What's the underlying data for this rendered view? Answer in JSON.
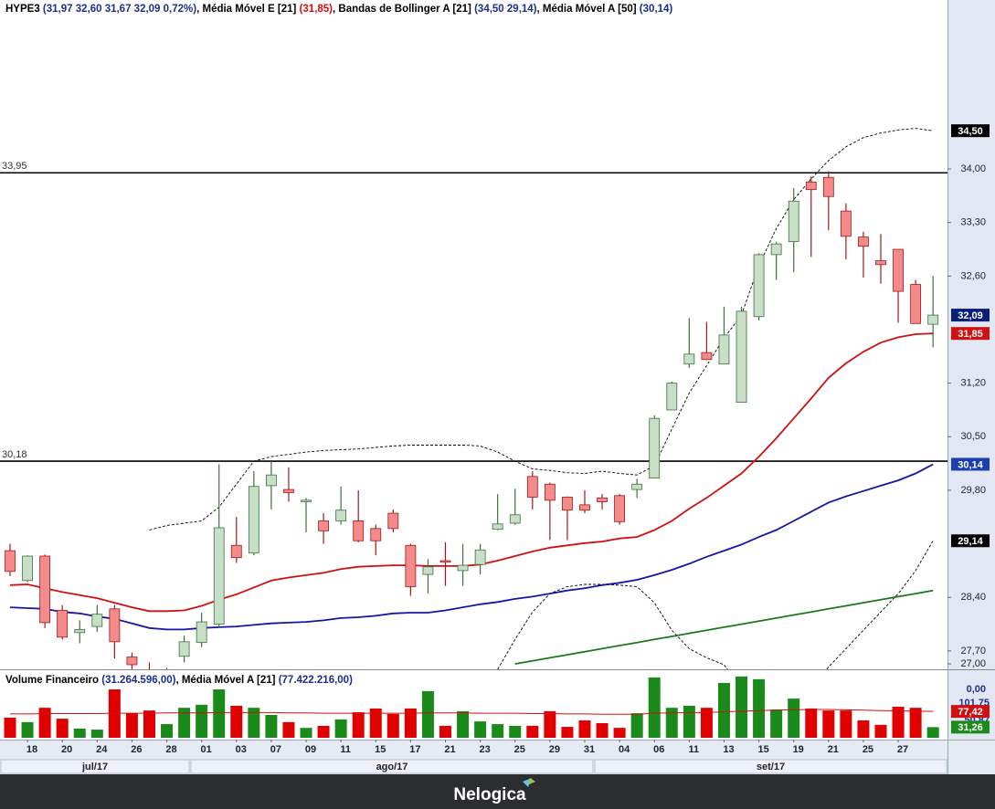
{
  "chart_data": [
    {
      "type": "candlestick",
      "name": "HYPE3",
      "ohlc_label": "(31,97  32,60  31,67  32,09  0,72%)",
      "categories": [
        null,
        "18",
        null,
        "20",
        null,
        "24",
        null,
        "26",
        null,
        "28",
        null,
        "01",
        null,
        "03",
        null,
        "07",
        null,
        "09",
        null,
        "11",
        null,
        "15",
        null,
        "17",
        null,
        "21",
        null,
        "23",
        null,
        "25",
        null,
        "29",
        null,
        "31",
        null,
        "04",
        null,
        "06",
        null,
        "11",
        null,
        "13",
        null,
        "15",
        null,
        "19",
        null,
        "21",
        null,
        "25",
        null,
        "27",
        null,
        null
      ],
      "months": [
        "jul/17",
        "ago/17",
        "set/17"
      ],
      "open": [
        29.01,
        28.62,
        28.94,
        28.23,
        27.94,
        28.02,
        28.25,
        27.62,
        27.45,
        27.2,
        27.63,
        27.81,
        28.05,
        29.08,
        28.98,
        29.86,
        29.81,
        29.65,
        29.4,
        29.4,
        29.4,
        29.3,
        29.5,
        29.08,
        28.7,
        28.88,
        28.75,
        28.83,
        29.29,
        29.37,
        29.98,
        29.88,
        29.71,
        29.61,
        29.7,
        29.73,
        29.81,
        29.96,
        30.85,
        31.45,
        31.6,
        31.45,
        30.95,
        32.07,
        32.88,
        33.05,
        33.83,
        33.89,
        33.45,
        33.11,
        32.8,
        32.95,
        32.49,
        31.97
      ],
      "high": [
        29.1,
        28.95,
        28.96,
        28.3,
        28.1,
        28.3,
        28.3,
        27.68,
        27.55,
        27.48,
        27.9,
        28.2,
        30.14,
        29.45,
        30.05,
        30.18,
        30.1,
        29.7,
        29.5,
        29.85,
        29.8,
        29.35,
        29.55,
        29.1,
        28.9,
        29.12,
        29.1,
        29.1,
        29.75,
        29.82,
        30.05,
        29.9,
        29.72,
        29.8,
        29.75,
        29.75,
        29.95,
        30.78,
        31.22,
        32.05,
        32.0,
        32.2,
        32.2,
        32.9,
        33.05,
        33.75,
        33.9,
        33.97,
        33.55,
        33.18,
        33.15,
        32.95,
        32.55,
        32.6
      ],
      "low": [
        28.68,
        28.6,
        28.0,
        27.85,
        27.8,
        27.95,
        27.6,
        27.46,
        27.1,
        27.1,
        27.55,
        27.75,
        28.0,
        28.85,
        28.95,
        29.55,
        29.65,
        29.25,
        29.1,
        29.35,
        29.12,
        28.95,
        29.25,
        28.42,
        28.45,
        28.55,
        28.55,
        28.7,
        29.28,
        29.35,
        29.55,
        29.15,
        29.15,
        29.5,
        29.55,
        29.35,
        29.7,
        29.96,
        30.85,
        31.4,
        31.5,
        31.45,
        30.95,
        32.02,
        32.55,
        32.65,
        32.85,
        33.2,
        32.82,
        32.58,
        32.5,
        31.99,
        31.98,
        31.67
      ],
      "close": [
        28.74,
        28.94,
        28.07,
        27.88,
        27.98,
        28.18,
        27.82,
        27.52,
        27.2,
        27.4,
        27.82,
        28.08,
        29.31,
        28.92,
        29.85,
        30.0,
        29.77,
        29.67,
        29.27,
        29.54,
        29.14,
        29.14,
        29.3,
        28.54,
        28.8,
        28.86,
        28.82,
        29.02,
        29.36,
        29.48,
        29.71,
        29.67,
        29.54,
        29.54,
        29.65,
        29.39,
        29.88,
        30.74,
        31.2,
        31.58,
        31.51,
        31.83,
        32.14,
        32.88,
        33.02,
        33.58,
        33.73,
        33.64,
        33.12,
        32.99,
        32.75,
        32.4,
        31.98,
        32.09
      ],
      "up_color": "#c6dfc6",
      "up_edge": "#3f6f3f",
      "down_color": "#f48a8a",
      "down_edge": "#a01818",
      "series": [
        {
          "name": "Média Móvel E [21]",
          "value_label": "(31,85)",
          "label_color": "#d01010",
          "color": "#d01010",
          "dashed": false,
          "values": [
            28.56,
            28.57,
            28.52,
            28.47,
            28.43,
            28.39,
            28.33,
            28.27,
            28.22,
            28.22,
            28.23,
            28.29,
            28.37,
            28.44,
            28.53,
            28.62,
            28.66,
            28.69,
            28.72,
            28.77,
            28.8,
            28.81,
            28.82,
            28.82,
            28.81,
            28.81,
            28.81,
            28.83,
            28.88,
            28.94,
            29.0,
            29.05,
            29.08,
            29.11,
            29.13,
            29.17,
            29.19,
            29.28,
            29.4,
            29.56,
            29.7,
            29.86,
            30.02,
            30.24,
            30.48,
            30.74,
            31.0,
            31.27,
            31.46,
            31.61,
            31.73,
            31.8,
            31.84,
            31.85
          ]
        },
        {
          "name": "Bandas de Bollinger A [21]",
          "value_label": "(34,50  29,14)",
          "label_color": "#1c2f8c",
          "color": "#000000",
          "dashed": true,
          "values": [
            null,
            null,
            null,
            null,
            null,
            null,
            null,
            null,
            29.28,
            29.34,
            29.37,
            29.4,
            29.58,
            29.88,
            30.18,
            30.24,
            30.27,
            30.3,
            30.32,
            30.33,
            30.34,
            30.36,
            30.38,
            30.39,
            30.39,
            30.39,
            30.39,
            30.38,
            30.3,
            30.18,
            30.08,
            30.06,
            30.03,
            30.02,
            30.05,
            30.02,
            30.0,
            30.12,
            30.6,
            31.07,
            31.43,
            31.79,
            32.09,
            32.74,
            33.22,
            33.6,
            33.87,
            34.11,
            34.29,
            34.41,
            34.47,
            34.51,
            34.53,
            34.5
          ],
          "lower": [
            null,
            null,
            null,
            null,
            null,
            null,
            null,
            null,
            null,
            null,
            null,
            null,
            null,
            null,
            null,
            null,
            null,
            null,
            null,
            null,
            null,
            null,
            null,
            null,
            null,
            null,
            null,
            null,
            27.46,
            27.85,
            28.21,
            28.45,
            28.54,
            28.57,
            28.57,
            28.56,
            28.54,
            28.33,
            27.97,
            27.73,
            27.61,
            27.52,
            27.2,
            26.9,
            26.8,
            26.9,
            27.2,
            27.49,
            27.73,
            27.97,
            28.21,
            28.45,
            28.75,
            29.14
          ]
        },
        {
          "name": "Média Móvel A [50]",
          "value_label": "(30,14)",
          "label_color": "#1c2f8c",
          "color": "#1515a8",
          "dashed": false,
          "values": [
            28.27,
            28.26,
            28.25,
            28.21,
            28.19,
            28.15,
            28.12,
            28.06,
            28.0,
            27.98,
            27.98,
            28.0,
            28.01,
            28.02,
            28.04,
            28.06,
            28.07,
            28.08,
            28.1,
            28.13,
            28.14,
            28.16,
            28.19,
            28.2,
            28.2,
            28.23,
            28.27,
            28.31,
            28.34,
            28.38,
            28.41,
            28.45,
            28.49,
            28.52,
            28.56,
            28.59,
            28.63,
            28.69,
            28.76,
            28.84,
            28.93,
            29.01,
            29.09,
            29.19,
            29.28,
            29.4,
            29.52,
            29.64,
            29.72,
            29.79,
            29.86,
            29.93,
            30.02,
            30.14
          ]
        },
        {
          "color": "#1a7a1a",
          "dashed": false,
          "values": [
            null,
            null,
            null,
            null,
            null,
            null,
            null,
            null,
            null,
            null,
            null,
            null,
            null,
            null,
            null,
            null,
            null,
            null,
            null,
            null,
            null,
            null,
            null,
            null,
            null,
            null,
            null,
            null,
            null,
            27.53,
            27.57,
            27.61,
            27.65,
            27.69,
            27.73,
            27.77,
            27.81,
            27.85,
            27.89,
            27.93,
            27.97,
            28.01,
            28.05,
            28.09,
            28.13,
            28.17,
            28.21,
            28.25,
            28.29,
            28.33,
            28.37,
            28.41,
            28.45,
            28.49
          ]
        }
      ],
      "hlines": [
        {
          "value": 33.95,
          "label": "33,95"
        },
        {
          "value": 30.18,
          "label": "30,18"
        }
      ],
      "ylim": [
        27.46,
        35.97
      ],
      "yticks": [
        {
          "value": 34.0,
          "label": "34,00"
        },
        {
          "value": 33.3,
          "label": "33,30"
        },
        {
          "value": 32.6,
          "label": "32,60"
        },
        {
          "value": 31.2,
          "label": "31,20"
        },
        {
          "value": 30.5,
          "label": "30,50"
        },
        {
          "value": 29.8,
          "label": "29,80"
        },
        {
          "value": 28.4,
          "label": "28,40"
        },
        {
          "value": 27.7,
          "label": "27,70"
        },
        {
          "value": 27.0,
          "label": "27,00"
        }
      ],
      "badges": [
        {
          "value": 34.5,
          "label": "34,50",
          "color": "#000000"
        },
        {
          "value": 32.09,
          "label": "32,09",
          "color": "#0a1f7a"
        },
        {
          "value": 31.85,
          "label": "31,85",
          "color": "#d01010"
        },
        {
          "value": 30.14,
          "label": "30,14",
          "color": "#1a3fb0"
        },
        {
          "value": 29.14,
          "label": "29,14",
          "color": "#000000"
        }
      ]
    },
    {
      "type": "bar",
      "name": "Volume Financeiro",
      "value_label": "(31.264.596,00)",
      "values": [
        59,
        46,
        88,
        56,
        27,
        24,
        142,
        72,
        80,
        40,
        88,
        97,
        142,
        94,
        88,
        67,
        46,
        29,
        35,
        54,
        75,
        86,
        70,
        86,
        137,
        35,
        78,
        48,
        40,
        35,
        35,
        78,
        32,
        51,
        43,
        29,
        72,
        177,
        88,
        94,
        88,
        161,
        180,
        172,
        83,
        115,
        86,
        80,
        80,
        51,
        38,
        91,
        88,
        31.26
      ],
      "up_color": "#1a8a1a",
      "down_color": "#e00000",
      "series": [
        {
          "name": "Média Móvel A [21]",
          "value_label": "(77.422.216,00)",
          "color": "#d01010",
          "values": [
            70,
            70,
            71,
            71,
            71,
            71,
            72,
            72,
            72,
            73,
            73,
            73,
            74,
            74,
            74,
            74,
            73,
            73,
            72,
            72,
            72,
            72,
            72,
            72,
            73,
            73,
            73,
            72,
            72,
            72,
            71,
            71,
            70,
            70,
            69,
            69,
            69,
            72,
            73,
            74,
            74,
            76,
            78,
            80,
            81,
            82,
            83,
            83,
            82,
            81,
            80,
            79,
            78,
            77.42
          ]
        }
      ],
      "ylim": [
        0,
        190.3
      ],
      "top_label": "0,00",
      "yticks": [
        {
          "value": 101.75,
          "label": "101,75"
        },
        {
          "value": 50.87,
          "label": "50,87"
        }
      ],
      "badges": [
        {
          "value": 77.42,
          "label": "77,42",
          "color": "#d01010"
        },
        {
          "value": 31.26,
          "label": "31,26",
          "color": "#1a8a1a"
        }
      ]
    }
  ],
  "footer": {
    "brand": "Nelogica"
  }
}
